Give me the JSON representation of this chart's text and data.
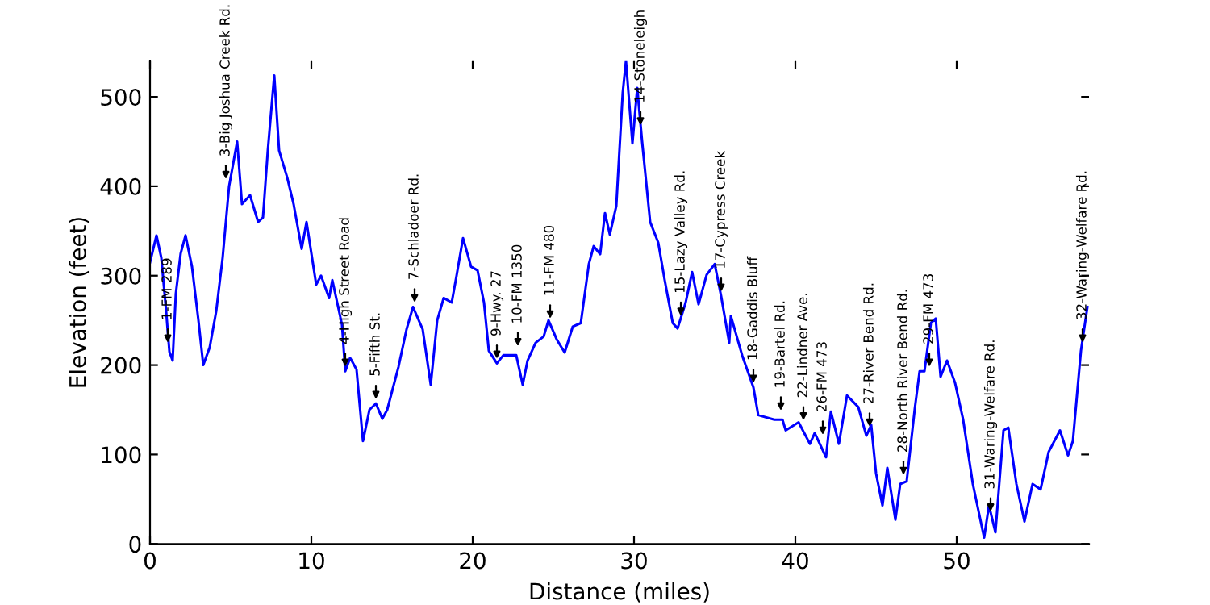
{
  "chart_data": {
    "type": "line",
    "xlabel": "Distance (miles)",
    "ylabel": "Elevation (feet)",
    "xlim": [
      0,
      58.2
    ],
    "ylim": [
      0,
      540
    ],
    "xticks": [
      0,
      10,
      20,
      30,
      40,
      50
    ],
    "yticks": [
      0,
      100,
      200,
      300,
      400,
      500
    ],
    "grid": false,
    "legend": false,
    "marker": "none",
    "line_style": "solid",
    "series": [
      {
        "color": "#0000ff",
        "x": [
          0,
          0.4,
          0.7,
          1.0,
          1.2,
          1.4,
          1.6,
          1.9,
          2.2,
          2.6,
          3.0,
          3.3,
          3.7,
          4.1,
          4.5,
          4.9,
          5.4,
          5.7,
          6.2,
          6.7,
          7.0,
          7.3,
          7.7,
          8.0,
          8.5,
          8.9,
          9.4,
          9.7,
          10.3,
          10.6,
          11.1,
          11.3,
          11.9,
          12.1,
          12.4,
          12.5,
          12.8,
          13.2,
          13.6,
          14.0,
          14.4,
          14.7,
          15.4,
          15.9,
          16.3,
          16.9,
          17.4,
          17.8,
          18.2,
          18.7,
          19.0,
          19.4,
          19.9,
          20.3,
          20.7,
          21.0,
          21.5,
          21.9,
          22.7,
          23.1,
          23.4,
          23.9,
          24.4,
          24.7,
          25.2,
          25.7,
          26.2,
          26.7,
          27.2,
          27.5,
          27.9,
          28.2,
          28.5,
          28.9,
          29.3,
          29.5,
          29.9,
          30.2,
          30.5,
          31.0,
          31.5,
          31.9,
          32.4,
          32.7,
          33.2,
          33.6,
          34.0,
          34.5,
          35.0,
          35.4,
          35.9,
          36.0,
          36.7,
          37.4,
          37.7,
          38.7,
          39.2,
          39.4,
          40.2,
          40.9,
          41.2,
          41.9,
          42.2,
          42.7,
          43.2,
          43.9,
          44.4,
          44.7,
          45.0,
          45.4,
          45.7,
          46.2,
          46.5,
          46.9,
          47.4,
          47.7,
          48.0,
          48.4,
          48.7,
          49.0,
          49.4,
          49.9,
          50.4,
          51.0,
          51.7,
          52.0,
          52.4,
          52.9,
          53.2,
          53.7,
          54.2,
          54.7,
          55.2,
          55.7,
          56.4,
          56.9,
          57.2,
          57.7,
          58.1
        ],
        "values": [
          315,
          345,
          320,
          260,
          215,
          205,
          280,
          325,
          345,
          310,
          250,
          200,
          220,
          260,
          320,
          400,
          450,
          380,
          390,
          360,
          365,
          440,
          524,
          440,
          410,
          380,
          330,
          360,
          290,
          300,
          275,
          295,
          245,
          193,
          208,
          205,
          195,
          115,
          150,
          157,
          140,
          150,
          198,
          240,
          265,
          240,
          178,
          250,
          275,
          270,
          300,
          342,
          310,
          306,
          270,
          216,
          202,
          211,
          211,
          178,
          205,
          225,
          232,
          250,
          229,
          214,
          243,
          247,
          313,
          333,
          324,
          370,
          346,
          378,
          505,
          540,
          448,
          510,
          450,
          360,
          337,
          295,
          247,
          241,
          270,
          304,
          268,
          301,
          313,
          277,
          225,
          255,
          211,
          175,
          144,
          139,
          139,
          127,
          136,
          112,
          124,
          97,
          148,
          112,
          166,
          153,
          121,
          133,
          79,
          43,
          85,
          27,
          67,
          70,
          151,
          193,
          193,
          247,
          252,
          187,
          205,
          180,
          139,
          67,
          7,
          43,
          13,
          127,
          130,
          67,
          25,
          67,
          61,
          103,
          127,
          99,
          115,
          216,
          265
        ]
      }
    ],
    "annotations": [
      {
        "text": "1-FM 289",
        "x": 1.1,
        "y": 220
      },
      {
        "text": "3-Big Joshua Creek Rd.",
        "x": 4.7,
        "y": 403
      },
      {
        "text": "4-High Street Road",
        "x": 12.1,
        "y": 193
      },
      {
        "text": "5-Fifth St.",
        "x": 14.0,
        "y": 157
      },
      {
        "text": "7-Schladoer Rd.",
        "x": 16.4,
        "y": 265
      },
      {
        "text": "9-Hwy. 27",
        "x": 21.5,
        "y": 202
      },
      {
        "text": "10-FM 1350",
        "x": 22.8,
        "y": 216
      },
      {
        "text": "11-FM 480",
        "x": 24.8,
        "y": 247
      },
      {
        "text": "14-Stoneleigh",
        "x": 30.4,
        "y": 463
      },
      {
        "text": "15-Lazy Valley Rd.",
        "x": 32.9,
        "y": 250
      },
      {
        "text": "17-Cypress Creek",
        "x": 35.4,
        "y": 277
      },
      {
        "text": "18-Gaddis Bluff",
        "x": 37.4,
        "y": 175
      },
      {
        "text": "19-Bartel Rd.",
        "x": 39.1,
        "y": 144
      },
      {
        "text": "22-Lindner Ave.",
        "x": 40.5,
        "y": 133
      },
      {
        "text": "26-FM 473",
        "x": 41.7,
        "y": 117
      },
      {
        "text": "27-River Bend Rd.",
        "x": 44.6,
        "y": 126
      },
      {
        "text": "28-North River Bend Rd.",
        "x": 46.7,
        "y": 72
      },
      {
        "text": "29-FM 473",
        "x": 48.3,
        "y": 193
      },
      {
        "text": "31-Waring-Welfare Rd.",
        "x": 52.1,
        "y": 31
      },
      {
        "text": "32-Waring-Welfare Rd.",
        "x": 57.8,
        "y": 220
      }
    ]
  }
}
